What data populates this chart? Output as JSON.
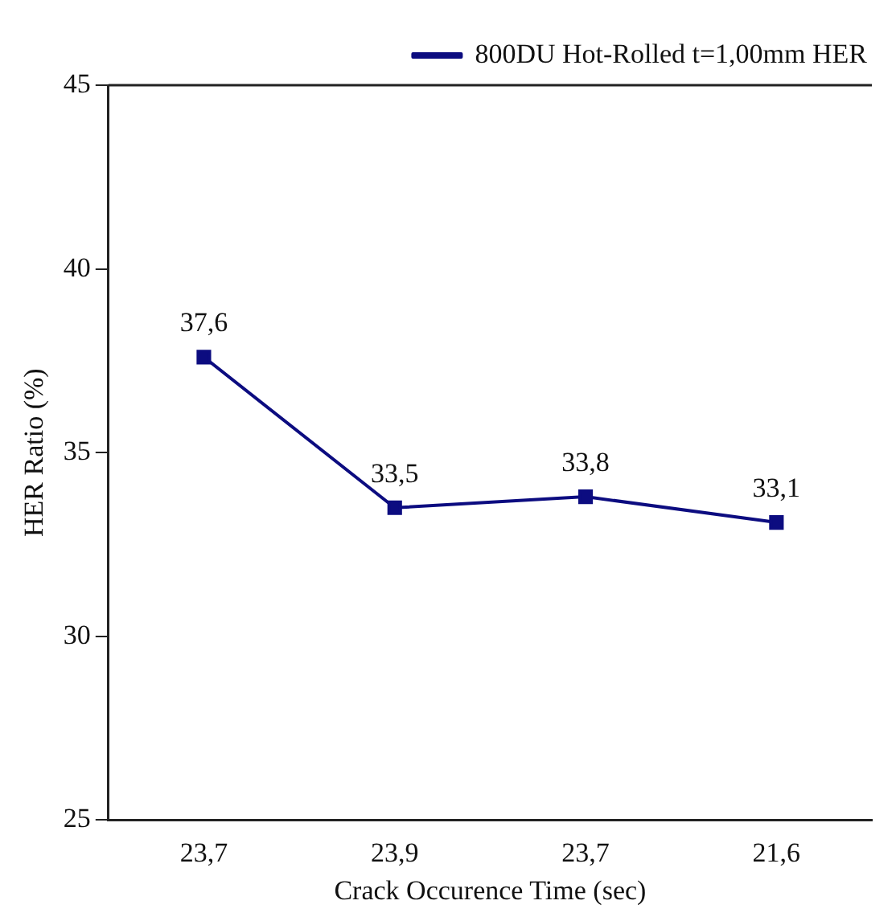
{
  "chart_data": {
    "type": "line",
    "xlabel": "Crack Occurence Time (sec)",
    "ylabel": "HER Ratio (%)",
    "categories": [
      "23,7",
      "23,9",
      "23,7",
      "21,6"
    ],
    "series": [
      {
        "name": "800DU Hot-Rolled t=1,00mm HER",
        "color": "#0c0c80",
        "values": [
          37.6,
          33.5,
          33.8,
          33.1
        ],
        "value_labels": [
          "37,6",
          "33,5",
          "33,8",
          "33,1"
        ]
      }
    ],
    "ylim": [
      25,
      45
    ],
    "yticks": [
      25,
      30,
      35,
      40,
      45
    ],
    "grid": false,
    "legend": "top right",
    "marker": "square",
    "line_style": "solid"
  }
}
